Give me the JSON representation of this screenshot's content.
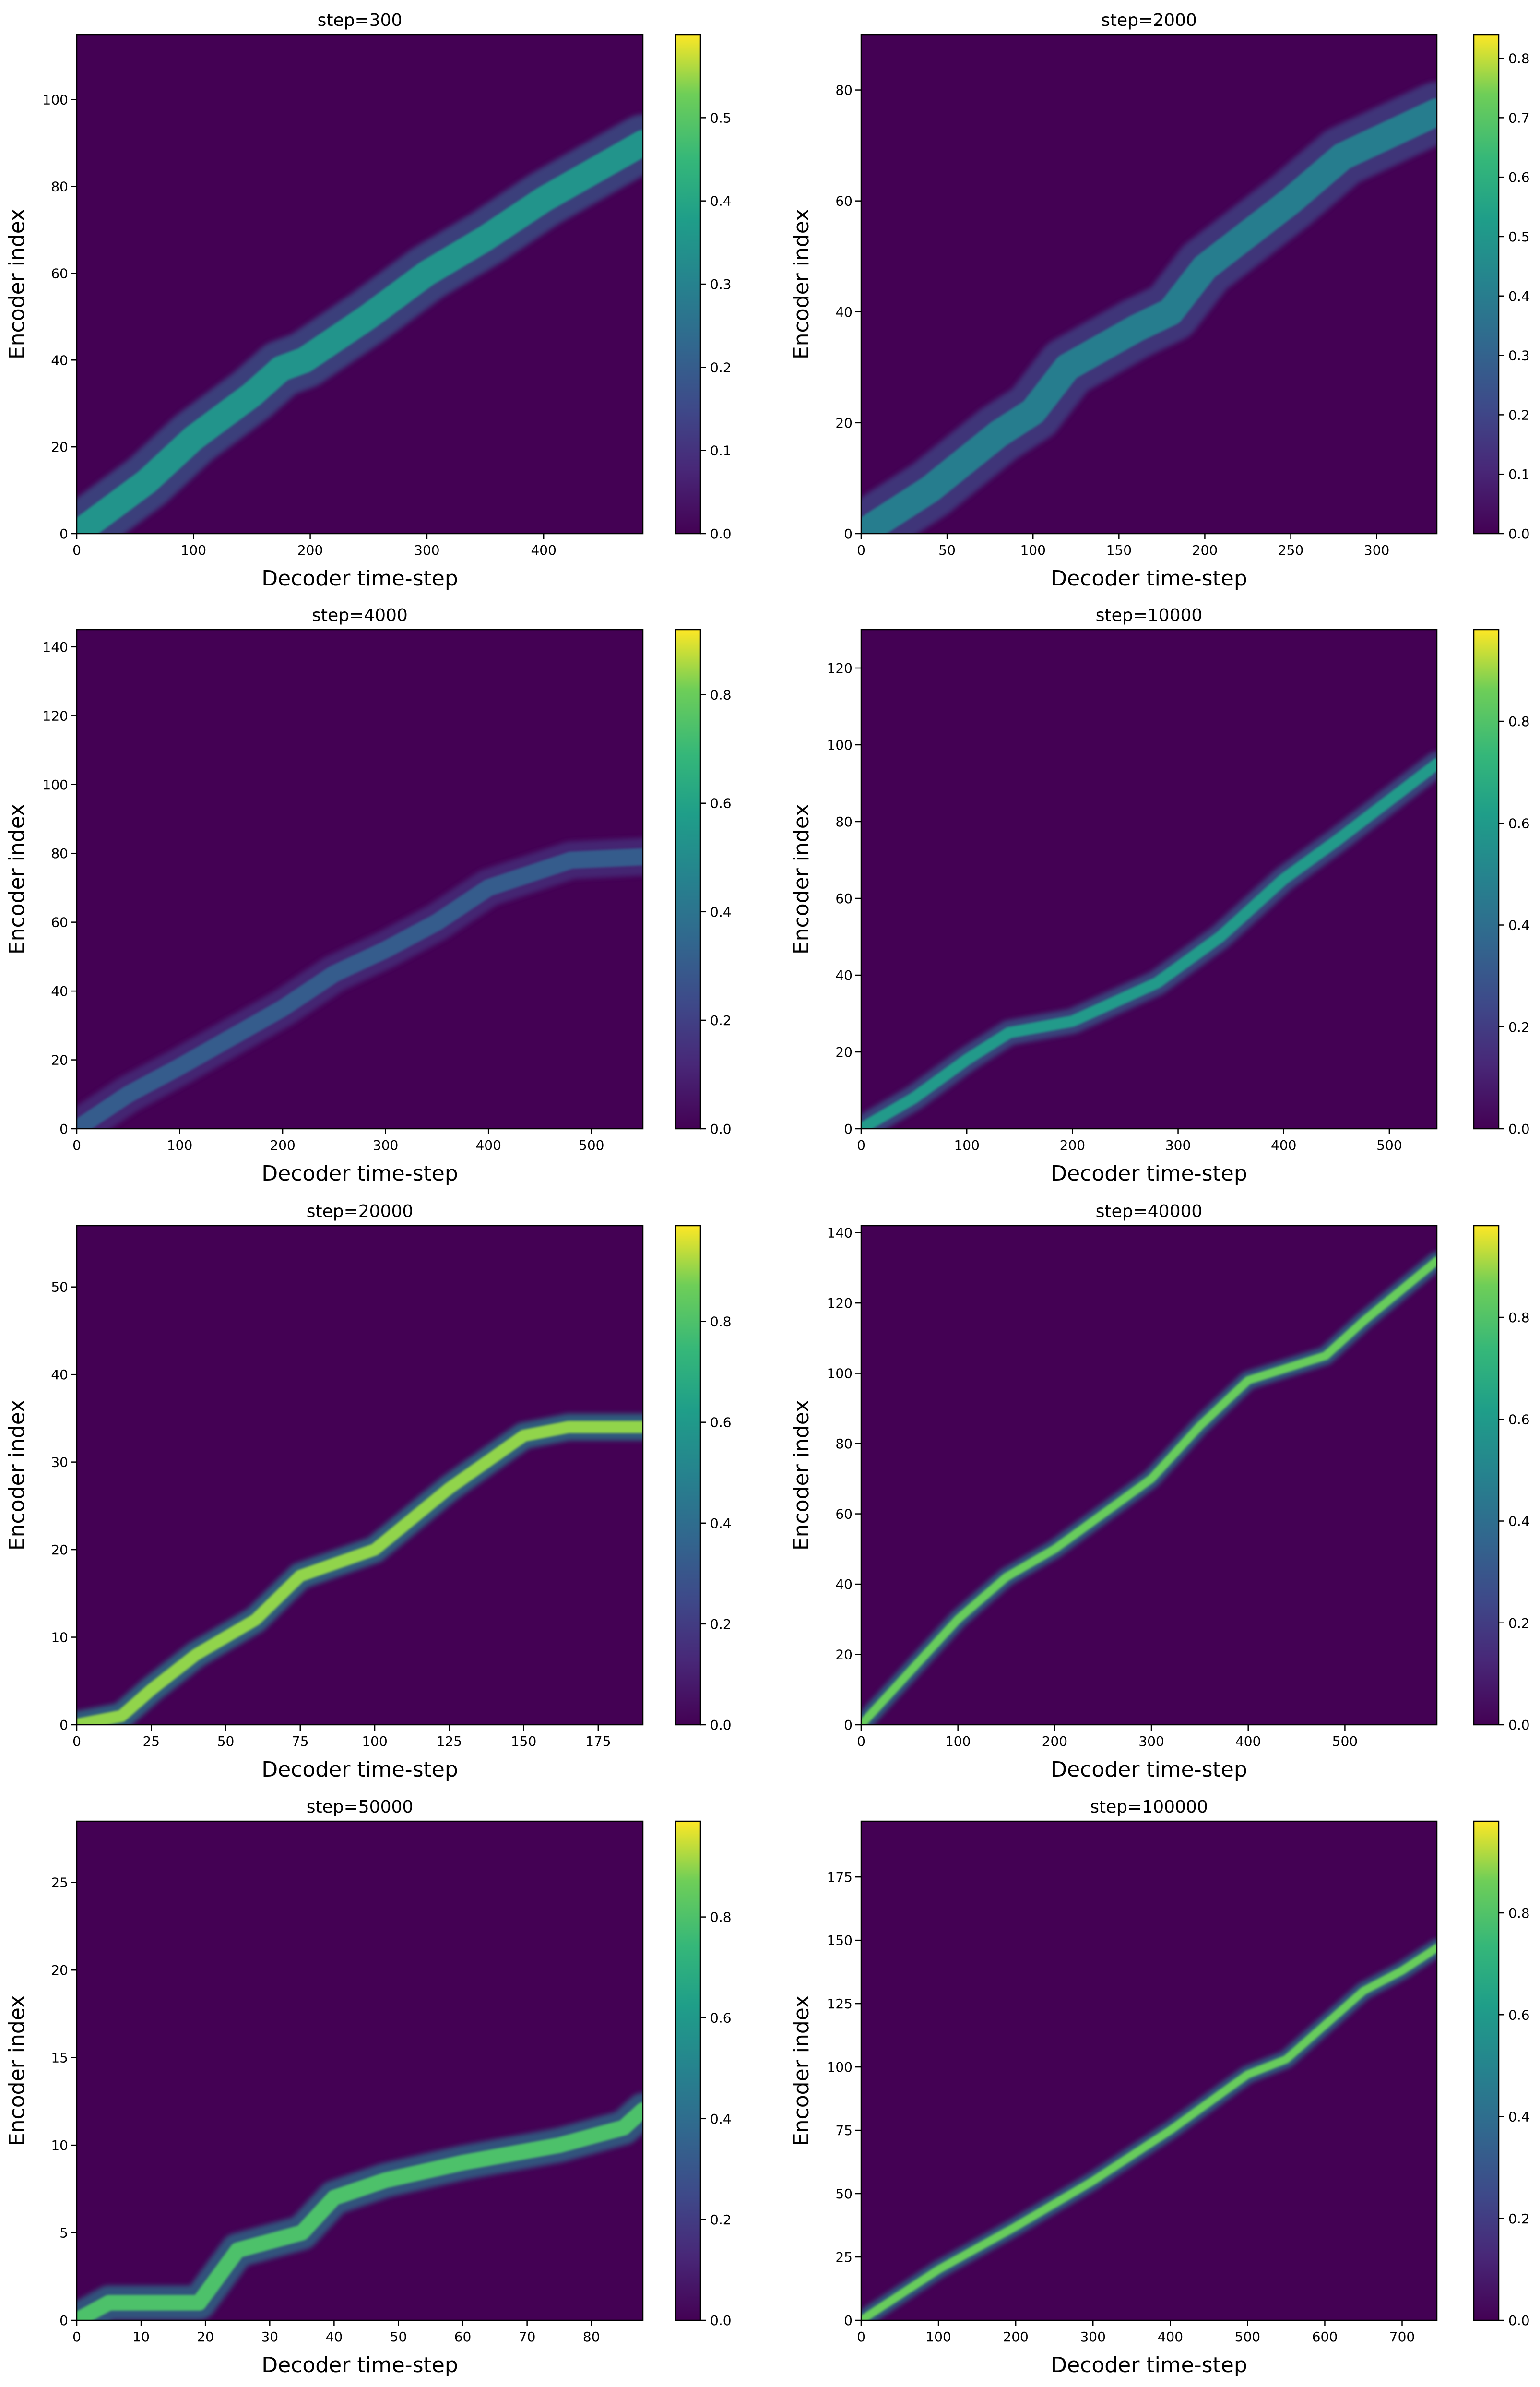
{
  "chart_data": [
    {
      "type": "heatmap",
      "title": "step=300",
      "xlabel": "Decoder time-step",
      "ylabel": "Encoder index",
      "xlim": [
        0,
        485
      ],
      "ylim": [
        0,
        115
      ],
      "xticks": [
        0,
        100,
        200,
        300,
        400
      ],
      "yticks": [
        0,
        20,
        40,
        60,
        80,
        100
      ],
      "clim": [
        0,
        0.6
      ],
      "cticks": [
        0.0,
        0.1,
        0.2,
        0.3,
        0.4,
        0.5
      ],
      "peak": 0.35,
      "width": 3,
      "alignment": [
        [
          0,
          0
        ],
        [
          25,
          5
        ],
        [
          60,
          12
        ],
        [
          100,
          22
        ],
        [
          150,
          32
        ],
        [
          175,
          38
        ],
        [
          195,
          40
        ],
        [
          250,
          50
        ],
        [
          300,
          60
        ],
        [
          350,
          68
        ],
        [
          400,
          77
        ],
        [
          485,
          90
        ]
      ]
    },
    {
      "type": "heatmap",
      "title": "step=2000",
      "xlabel": "Decoder time-step",
      "ylabel": "Encoder index",
      "xlim": [
        0,
        335
      ],
      "ylim": [
        0,
        90
      ],
      "xticks": [
        0,
        50,
        100,
        150,
        200,
        250,
        300
      ],
      "yticks": [
        0,
        20,
        40,
        60,
        80
      ],
      "clim": [
        0,
        0.84
      ],
      "cticks": [
        0.0,
        0.1,
        0.2,
        0.3,
        0.4,
        0.5,
        0.6,
        0.7,
        0.8
      ],
      "peak": 0.4,
      "width": 2.5,
      "alignment": [
        [
          0,
          0
        ],
        [
          40,
          8
        ],
        [
          80,
          18
        ],
        [
          100,
          22
        ],
        [
          120,
          30
        ],
        [
          160,
          37
        ],
        [
          180,
          40
        ],
        [
          200,
          48
        ],
        [
          250,
          60
        ],
        [
          280,
          68
        ],
        [
          335,
          76
        ]
      ]
    },
    {
      "type": "heatmap",
      "title": "step=4000",
      "xlabel": "Decoder time-step",
      "ylabel": "Encoder index",
      "xlim": [
        0,
        550
      ],
      "ylim": [
        0,
        145
      ],
      "xticks": [
        0,
        100,
        200,
        300,
        400,
        500
      ],
      "yticks": [
        0,
        20,
        40,
        60,
        80,
        100,
        120,
        140
      ],
      "clim": [
        0,
        0.92
      ],
      "cticks": [
        0.0,
        0.2,
        0.4,
        0.6,
        0.8
      ],
      "peak": 0.3,
      "width": 2.5,
      "alignment": [
        [
          0,
          0
        ],
        [
          50,
          10
        ],
        [
          100,
          18
        ],
        [
          200,
          35
        ],
        [
          250,
          45
        ],
        [
          300,
          52
        ],
        [
          350,
          60
        ],
        [
          400,
          70
        ],
        [
          480,
          78
        ],
        [
          550,
          79
        ]
      ]
    },
    {
      "type": "heatmap",
      "title": "step=10000",
      "xlabel": "Decoder time-step",
      "ylabel": "Encoder index",
      "xlim": [
        0,
        545
      ],
      "ylim": [
        0,
        130
      ],
      "xticks": [
        0,
        100,
        200,
        300,
        400,
        500
      ],
      "yticks": [
        0,
        20,
        40,
        60,
        80,
        100,
        120
      ],
      "clim": [
        0,
        0.98
      ],
      "cticks": [
        0.0,
        0.2,
        0.4,
        0.6,
        0.8
      ],
      "peak": 0.6,
      "width": 1.5,
      "alignment": [
        [
          0,
          0
        ],
        [
          50,
          8
        ],
        [
          100,
          18
        ],
        [
          140,
          25
        ],
        [
          200,
          28
        ],
        [
          280,
          38
        ],
        [
          340,
          50
        ],
        [
          400,
          65
        ],
        [
          450,
          75
        ],
        [
          545,
          95
        ]
      ]
    },
    {
      "type": "heatmap",
      "title": "step=20000",
      "xlabel": "Decoder time-step",
      "ylabel": "Encoder index",
      "xlim": [
        0,
        190
      ],
      "ylim": [
        0,
        57
      ],
      "xticks": [
        0,
        25,
        50,
        75,
        100,
        125,
        150,
        175
      ],
      "yticks": [
        0,
        10,
        20,
        30,
        40,
        50
      ],
      "clim": [
        0,
        0.99
      ],
      "cticks": [
        0.0,
        0.2,
        0.4,
        0.6,
        0.8
      ],
      "peak": 0.9,
      "width": 0.7,
      "alignment": [
        [
          0,
          0
        ],
        [
          15,
          1
        ],
        [
          25,
          4
        ],
        [
          40,
          8
        ],
        [
          60,
          12
        ],
        [
          75,
          17
        ],
        [
          100,
          20
        ],
        [
          125,
          27
        ],
        [
          150,
          33
        ],
        [
          165,
          34
        ],
        [
          190,
          34
        ]
      ]
    },
    {
      "type": "heatmap",
      "title": "step=40000",
      "xlabel": "Decoder time-step",
      "ylabel": "Encoder index",
      "xlim": [
        0,
        595
      ],
      "ylim": [
        0,
        142
      ],
      "xticks": [
        0,
        100,
        200,
        300,
        400,
        500
      ],
      "yticks": [
        0,
        20,
        40,
        60,
        80,
        100,
        120,
        140
      ],
      "clim": [
        0,
        0.98
      ],
      "cticks": [
        0.0,
        0.2,
        0.4,
        0.6,
        0.8
      ],
      "peak": 0.85,
      "width": 1.2,
      "alignment": [
        [
          0,
          0
        ],
        [
          50,
          15
        ],
        [
          100,
          30
        ],
        [
          150,
          42
        ],
        [
          200,
          50
        ],
        [
          300,
          70
        ],
        [
          350,
          85
        ],
        [
          400,
          98
        ],
        [
          480,
          105
        ],
        [
          520,
          115
        ],
        [
          595,
          132
        ]
      ]
    },
    {
      "type": "heatmap",
      "title": "step=50000",
      "xlabel": "Decoder time-step",
      "ylabel": "Encoder index",
      "xlim": [
        0,
        88
      ],
      "ylim": [
        0,
        28.5
      ],
      "xticks": [
        0,
        10,
        20,
        30,
        40,
        50,
        60,
        70,
        80
      ],
      "yticks": [
        0,
        5,
        10,
        15,
        20,
        25
      ],
      "clim": [
        0,
        0.99
      ],
      "cticks": [
        0.0,
        0.2,
        0.4,
        0.6,
        0.8
      ],
      "peak": 0.8,
      "width": 0.45,
      "alignment": [
        [
          0,
          0
        ],
        [
          5,
          1
        ],
        [
          19,
          1
        ],
        [
          21,
          2
        ],
        [
          25,
          4
        ],
        [
          35,
          5
        ],
        [
          40,
          7
        ],
        [
          48,
          8
        ],
        [
          60,
          9
        ],
        [
          75,
          10
        ],
        [
          85,
          11
        ],
        [
          88,
          12
        ]
      ]
    },
    {
      "type": "heatmap",
      "title": "step=100000",
      "xlabel": "Decoder time-step",
      "ylabel": "Encoder index",
      "xlim": [
        0,
        745
      ],
      "ylim": [
        0,
        197
      ],
      "xticks": [
        0,
        100,
        200,
        300,
        400,
        500,
        600,
        700
      ],
      "yticks": [
        0,
        25,
        50,
        75,
        100,
        125,
        150,
        175
      ],
      "clim": [
        0,
        0.98
      ],
      "cticks": [
        0.0,
        0.2,
        0.4,
        0.6,
        0.8
      ],
      "peak": 0.85,
      "width": 1.6,
      "alignment": [
        [
          0,
          0
        ],
        [
          100,
          20
        ],
        [
          200,
          37
        ],
        [
          300,
          55
        ],
        [
          400,
          75
        ],
        [
          500,
          97
        ],
        [
          550,
          103
        ],
        [
          650,
          130
        ],
        [
          700,
          138
        ],
        [
          745,
          147
        ]
      ]
    }
  ]
}
